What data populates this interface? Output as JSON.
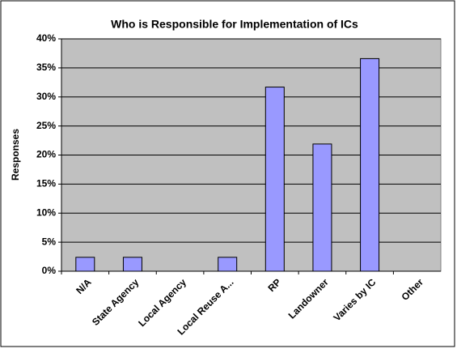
{
  "chart_data": {
    "type": "bar",
    "title": "Who is Responsible for Implementation of ICs",
    "categories": [
      "N/A",
      "State Agency",
      "Local Agency",
      "Local Reuse A...",
      "RP",
      "Landowner",
      "Varies by IC",
      "Other"
    ],
    "values": [
      2.4,
      2.4,
      0,
      2.4,
      31.7,
      21.9,
      36.6,
      0
    ],
    "color": "#9999ff",
    "y_label": "Responses",
    "ylim": [
      0,
      40
    ],
    "yticks": [
      {
        "value": 0,
        "label": "0%"
      },
      {
        "value": 5,
        "label": "5%"
      },
      {
        "value": 10,
        "label": "10%"
      },
      {
        "value": 15,
        "label": "15%"
      },
      {
        "value": 20,
        "label": "20%"
      },
      {
        "value": 25,
        "label": "25%"
      },
      {
        "value": 30,
        "label": "30%"
      },
      {
        "value": 35,
        "label": "35%"
      },
      {
        "value": 40,
        "label": "40%"
      }
    ],
    "grid": true
  }
}
